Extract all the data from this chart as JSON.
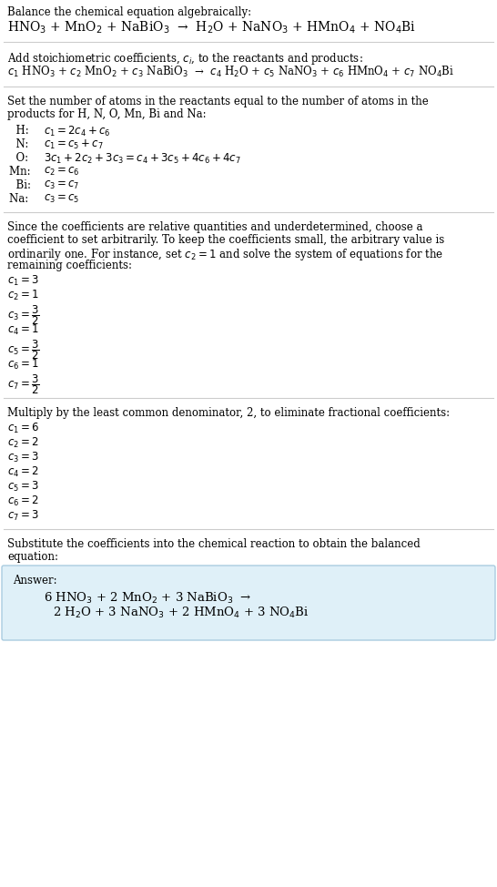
{
  "title_line1": "Balance the chemical equation algebraically:",
  "eq1": "HNO$_3$ + MnO$_2$ + NaBiO$_3$  →  H$_2$O + NaNO$_3$ + HMnO$_4$ + NO$_4$Bi",
  "section2_intro": "Add stoichiometric coefficients, $c_i$, to the reactants and products:",
  "eq2": "$c_1$ HNO$_3$ + $c_2$ MnO$_2$ + $c_3$ NaBiO$_3$  →  $c_4$ H$_2$O + $c_5$ NaNO$_3$ + $c_6$ HMnO$_4$ + $c_7$ NO$_4$Bi",
  "section3_intro1": "Set the number of atoms in the reactants equal to the number of atoms in the",
  "section3_intro2": "products for H, N, O, Mn, Bi and Na:",
  "atom_eqs": [
    [
      "  H:  ",
      "$c_1 = 2 c_4 + c_6$"
    ],
    [
      "  N:  ",
      "$c_1 = c_5 + c_7$"
    ],
    [
      "  O:  ",
      "$3 c_1 + 2 c_2 + 3 c_3 = c_4 + 3 c_5 + 4 c_6 + 4 c_7$"
    ],
    [
      "Mn:  ",
      "$c_2 = c_6$"
    ],
    [
      "  Bi:  ",
      "$c_3 = c_7$"
    ],
    [
      "Na:  ",
      "$c_3 = c_5$"
    ]
  ],
  "section4_intro": "Since the coefficients are relative quantities and underdetermined, choose a\ncoefficient to set arbitrarily. To keep the coefficients small, the arbitrary value is\nordinarily one. For instance, set $c_2 = 1$ and solve the system of equations for the\nremaining coefficients:",
  "coeffs1": [
    [
      "$c_1 = 3$",
      false
    ],
    [
      "$c_2 = 1$",
      false
    ],
    [
      "$c_3 = \\dfrac{3}{2}$",
      true
    ],
    [
      "$c_4 = 1$",
      false
    ],
    [
      "$c_5 = \\dfrac{3}{2}$",
      true
    ],
    [
      "$c_6 = 1$",
      false
    ],
    [
      "$c_7 = \\dfrac{3}{2}$",
      true
    ]
  ],
  "section5_intro": "Multiply by the least common denominator, 2, to eliminate fractional coefficients:",
  "coeffs2": [
    "$c_1 = 6$",
    "$c_2 = 2$",
    "$c_3 = 3$",
    "$c_4 = 2$",
    "$c_5 = 3$",
    "$c_6 = 2$",
    "$c_7 = 3$"
  ],
  "section6_intro1": "Substitute the coefficients into the chemical reaction to obtain the balanced",
  "section6_intro2": "equation:",
  "answer_label": "Answer:",
  "answer_eq1": "6 HNO$_3$ + 2 MnO$_2$ + 3 NaBiO$_3$  →",
  "answer_eq2": "2 H$_2$O + 3 NaNO$_3$ + 2 HMnO$_4$ + 3 NO$_4$Bi",
  "bg_color": "#ffffff",
  "answer_bg": "#dff0f8",
  "answer_border": "#aacce0",
  "text_color": "#000000",
  "font_size": 8.5,
  "line_color": "#cccccc"
}
